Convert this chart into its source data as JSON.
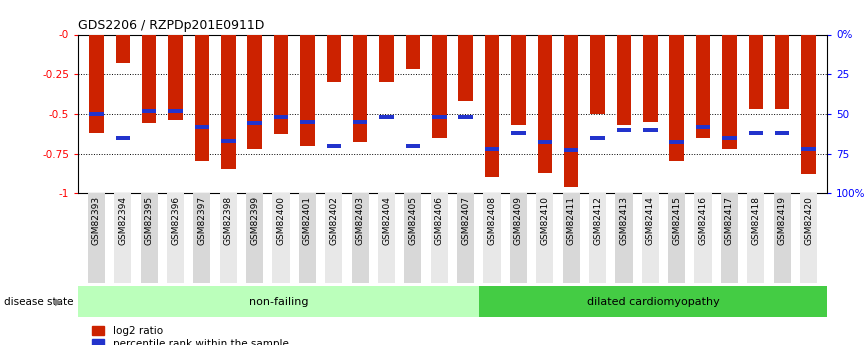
{
  "title": "GDS2206 / RZPDp201E0911D",
  "samples": [
    "GSM82393",
    "GSM82394",
    "GSM82395",
    "GSM82396",
    "GSM82397",
    "GSM82398",
    "GSM82399",
    "GSM82400",
    "GSM82401",
    "GSM82402",
    "GSM82403",
    "GSM82404",
    "GSM82405",
    "GSM82406",
    "GSM82407",
    "GSM82408",
    "GSM82409",
    "GSM82410",
    "GSM82411",
    "GSM82412",
    "GSM82413",
    "GSM82414",
    "GSM82415",
    "GSM82416",
    "GSM82417",
    "GSM82418",
    "GSM82419",
    "GSM82420"
  ],
  "log2_ratio": [
    -0.62,
    -0.18,
    -0.56,
    -0.54,
    -0.8,
    -0.85,
    -0.72,
    -0.63,
    -0.7,
    -0.3,
    -0.68,
    -0.3,
    -0.22,
    -0.65,
    -0.42,
    -0.9,
    -0.57,
    -0.87,
    -0.96,
    -0.5,
    -0.57,
    -0.55,
    -0.8,
    -0.65,
    -0.72,
    -0.47,
    -0.47,
    -0.88
  ],
  "blue_pos": [
    -0.5,
    -0.65,
    -0.48,
    -0.48,
    -0.58,
    -0.67,
    -0.56,
    -0.52,
    -0.55,
    -0.7,
    -0.55,
    -0.52,
    -0.7,
    -0.52,
    -0.52,
    -0.72,
    -0.62,
    -0.68,
    -0.73,
    -0.65,
    -0.6,
    -0.6,
    -0.68,
    -0.58,
    -0.65,
    -0.62,
    -0.62,
    -0.72
  ],
  "non_failing_count": 15,
  "ylim_left": [
    -1.0,
    0.0
  ],
  "yticks_left": [
    0.0,
    -0.25,
    -0.5,
    -0.75,
    -1.0
  ],
  "ytick_labels_left": [
    "-0",
    "-0.25",
    "-0.5",
    "-0.75",
    "-1"
  ],
  "yticks_right_vals": [
    0,
    25,
    50,
    75,
    100
  ],
  "ytick_labels_right": [
    "0%",
    "25",
    "50",
    "75",
    "100%"
  ],
  "bar_color": "#cc2200",
  "blue_color": "#2233cc",
  "nonfailing_bg": "#bbffbb",
  "dilated_bg": "#44cc44",
  "legend_label1": "log2 ratio",
  "legend_label2": "percentile rank within the sample",
  "disease_label": "disease state",
  "nonfailing_label": "non-failing",
  "dilated_label": "dilated cardiomyopathy",
  "bar_width": 0.55,
  "blue_bar_height": 0.025
}
